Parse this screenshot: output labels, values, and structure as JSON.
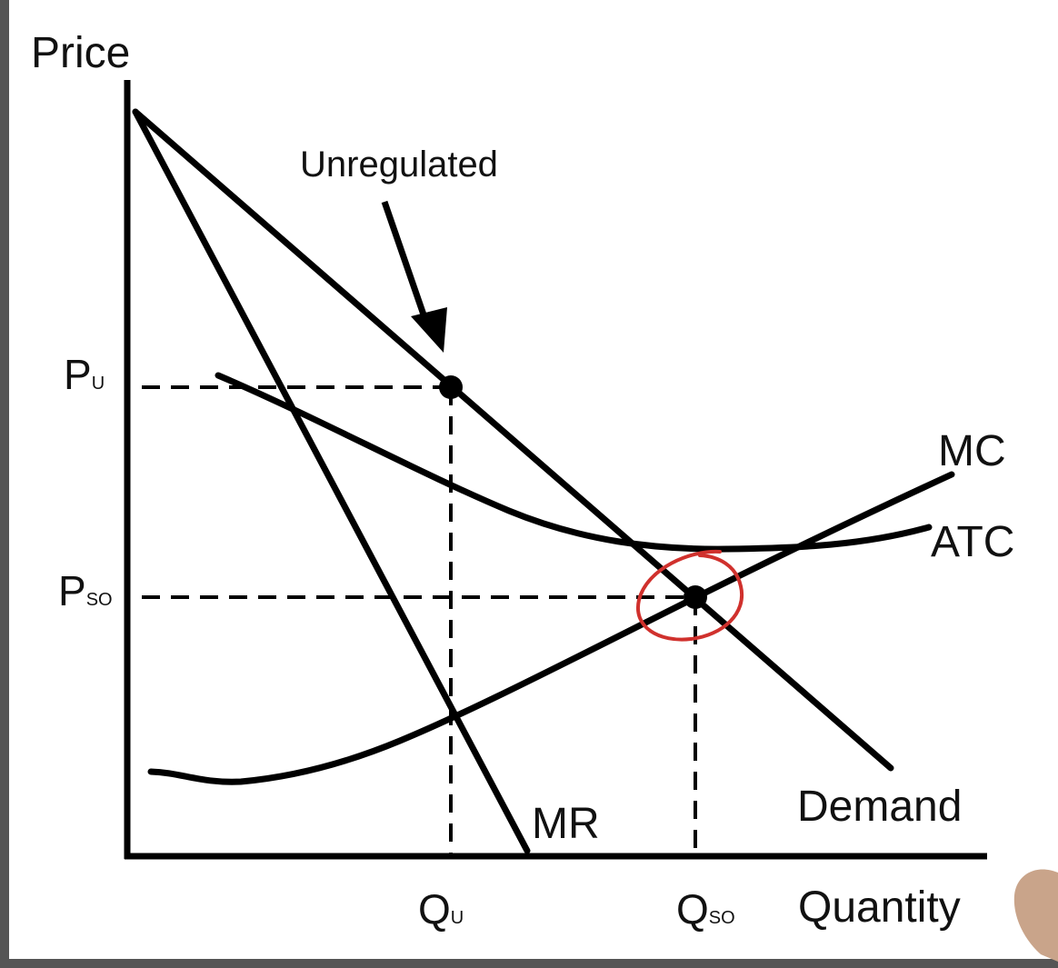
{
  "diagram": {
    "y_axis_label": "Price",
    "x_axis_label": "Quantity",
    "annotation": "Unregulated",
    "curves": {
      "demand": "Demand",
      "mr": "MR",
      "mc": "MC",
      "atc": "ATC"
    },
    "price_marks": {
      "pu": {
        "main": "P",
        "sub": "U"
      },
      "pso": {
        "main": "P",
        "sub": "SO"
      }
    },
    "quantity_marks": {
      "qu": {
        "main": "Q",
        "sub": "U"
      },
      "qso": {
        "main": "Q",
        "sub": "SO"
      }
    },
    "colors": {
      "ink": "#000000",
      "highlight_circle": "#d0312d",
      "background": "#ffffff",
      "border": "#555555"
    }
  }
}
